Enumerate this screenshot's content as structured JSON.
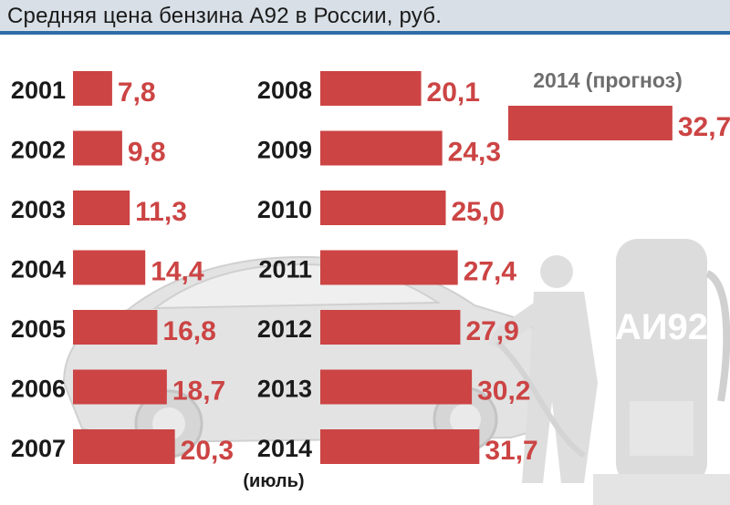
{
  "title": "Средняя цена бензина А92 в России, руб.",
  "colors": {
    "bar": "#cc4444",
    "value_text": "#cc4444",
    "year_text": "#1a1a1a",
    "title_bar": "#d8dfe6",
    "title_underline": "#2e6ca6",
    "illustration": "#e0e0e0"
  },
  "illustration": {
    "pump_label": "АИ92"
  },
  "chart_data": {
    "type": "bar",
    "orientation": "horizontal",
    "title": "Средняя цена бензина А92 в России, руб.",
    "groups": [
      {
        "items": [
          {
            "year": "2001",
            "value": 7.8,
            "label": "7,8"
          },
          {
            "year": "2002",
            "value": 9.8,
            "label": "9,8"
          },
          {
            "year": "2003",
            "value": 11.3,
            "label": "11,3"
          },
          {
            "year": "2004",
            "value": 14.4,
            "label": "14,4"
          },
          {
            "year": "2005",
            "value": 16.8,
            "label": "16,8"
          },
          {
            "year": "2006",
            "value": 18.7,
            "label": "18,7"
          },
          {
            "year": "2007",
            "value": 20.3,
            "label": "20,3"
          }
        ]
      },
      {
        "items": [
          {
            "year": "2008",
            "value": 20.1,
            "label": "20,1"
          },
          {
            "year": "2009",
            "value": 24.3,
            "label": "24,3"
          },
          {
            "year": "2010",
            "value": 25.0,
            "label": "25,0"
          },
          {
            "year": "2011",
            "value": 27.4,
            "label": "27,4"
          },
          {
            "year": "2012",
            "value": 27.9,
            "label": "27,9"
          },
          {
            "year": "2013",
            "value": 30.2,
            "label": "30,2"
          },
          {
            "year": "2014",
            "value": 31.7,
            "label": "31,7",
            "note": "(июль)"
          }
        ]
      }
    ],
    "forecast": {
      "label": "2014 (прогноз)",
      "value": 32.7,
      "value_label": "32,7"
    }
  }
}
